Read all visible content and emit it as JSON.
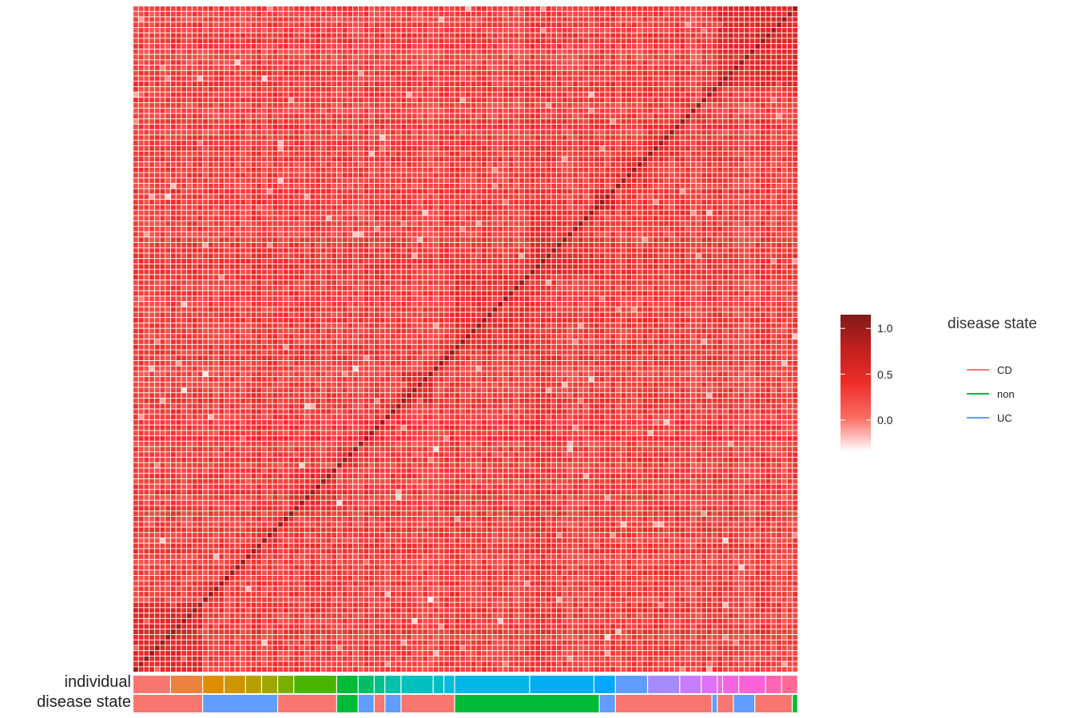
{
  "chart_data": {
    "type": "heatmap",
    "colorbar": {
      "ticks": [
        1.0,
        0.5,
        0.0
      ],
      "tick_labels": [
        "1.0",
        "0.5",
        "0.0"
      ],
      "range": [
        -0.35,
        1.15
      ],
      "colors": [
        "#ffffff",
        "#fa6d63",
        "#ef2d2a",
        "#c2201e",
        "#7f1a18"
      ]
    },
    "matrix": {
      "n": 124,
      "diagonal_value": 1.0,
      "typical_offdiagonal_value": 0.3,
      "block_boundaries": [
        0,
        7,
        13,
        17,
        21,
        24,
        27,
        30,
        38,
        42,
        45,
        47,
        50,
        56,
        58,
        60,
        74,
        86,
        90,
        96,
        102,
        106,
        109,
        110,
        113,
        118,
        121,
        124
      ],
      "high_correlation_blocks": [
        [
          0,
          13
        ],
        [
          50,
          56
        ],
        [
          86,
          90
        ],
        [
          109,
          124
        ]
      ]
    },
    "annotation_rows": [
      {
        "label": "individual",
        "segments": [
          {
            "start": 0,
            "end": 7,
            "color": "#F8766D"
          },
          {
            "start": 7,
            "end": 13,
            "color": "#ED813E"
          },
          {
            "start": 13,
            "end": 17,
            "color": "#DE8C00"
          },
          {
            "start": 17,
            "end": 21,
            "color": "#CD9600"
          },
          {
            "start": 21,
            "end": 24,
            "color": "#B79F00"
          },
          {
            "start": 24,
            "end": 27,
            "color": "#9DA700"
          },
          {
            "start": 27,
            "end": 30,
            "color": "#7CAE00"
          },
          {
            "start": 30,
            "end": 38,
            "color": "#49B500"
          },
          {
            "start": 38,
            "end": 42,
            "color": "#00BA38"
          },
          {
            "start": 42,
            "end": 45,
            "color": "#00BE67"
          },
          {
            "start": 45,
            "end": 47,
            "color": "#00C08B"
          },
          {
            "start": 47,
            "end": 50,
            "color": "#00C1A9"
          },
          {
            "start": 50,
            "end": 56,
            "color": "#00C0BE"
          },
          {
            "start": 56,
            "end": 58,
            "color": "#00BFC4"
          },
          {
            "start": 58,
            "end": 60,
            "color": "#00BBDA"
          },
          {
            "start": 60,
            "end": 74,
            "color": "#00B5E8"
          },
          {
            "start": 74,
            "end": 86,
            "color": "#00ADF0"
          },
          {
            "start": 86,
            "end": 90,
            "color": "#00A9FF"
          },
          {
            "start": 90,
            "end": 96,
            "color": "#619CFF"
          },
          {
            "start": 96,
            "end": 102,
            "color": "#A58AFF"
          },
          {
            "start": 102,
            "end": 106,
            "color": "#C77CFF"
          },
          {
            "start": 106,
            "end": 109,
            "color": "#DC71FA"
          },
          {
            "start": 109,
            "end": 110,
            "color": "#EB6AEF"
          },
          {
            "start": 110,
            "end": 113,
            "color": "#F564E3"
          },
          {
            "start": 113,
            "end": 118,
            "color": "#FB61D7"
          },
          {
            "start": 118,
            "end": 121,
            "color": "#FF64B0"
          },
          {
            "start": 121,
            "end": 124,
            "color": "#FF6C91"
          }
        ]
      },
      {
        "label": "disease state",
        "segments": [
          {
            "start": 0,
            "end": 13,
            "color": "#F8766D"
          },
          {
            "start": 13,
            "end": 27,
            "color": "#619CFF"
          },
          {
            "start": 27,
            "end": 38,
            "color": "#F8766D"
          },
          {
            "start": 38,
            "end": 42,
            "color": "#00BA38"
          },
          {
            "start": 42,
            "end": 45,
            "color": "#619CFF"
          },
          {
            "start": 45,
            "end": 47,
            "color": "#F8766D"
          },
          {
            "start": 47,
            "end": 50,
            "color": "#619CFF"
          },
          {
            "start": 50,
            "end": 60,
            "color": "#F8766D"
          },
          {
            "start": 60,
            "end": 87,
            "color": "#00BA38"
          },
          {
            "start": 87,
            "end": 90,
            "color": "#619CFF"
          },
          {
            "start": 90,
            "end": 108,
            "color": "#F8766D"
          },
          {
            "start": 108,
            "end": 109,
            "color": "#619CFF"
          },
          {
            "start": 109,
            "end": 112,
            "color": "#F8766D"
          },
          {
            "start": 112,
            "end": 116,
            "color": "#619CFF"
          },
          {
            "start": 116,
            "end": 123,
            "color": "#F8766D"
          },
          {
            "start": 123,
            "end": 124,
            "color": "#00BA38"
          }
        ]
      }
    ],
    "legend": {
      "title": "disease state",
      "entries": [
        {
          "label": "CD",
          "color": "#F8766D"
        },
        {
          "label": "non",
          "color": "#00BA38"
        },
        {
          "label": "UC",
          "color": "#619CFF"
        }
      ]
    }
  }
}
